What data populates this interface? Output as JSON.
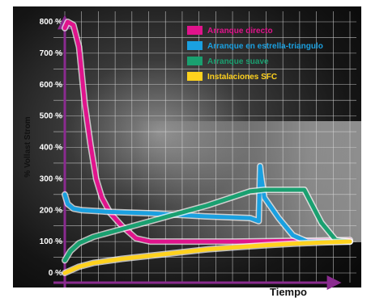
{
  "chart_data": {
    "type": "line",
    "title": "",
    "xlabel": "Tiempo",
    "ylabel": "% Vollast Strom",
    "ylim": [
      0,
      800
    ],
    "xlim": [
      0,
      10
    ],
    "yticks": [
      0,
      100,
      200,
      300,
      400,
      500,
      600,
      700,
      800
    ],
    "ytick_labels": [
      "0 %",
      "100 %",
      "200 %",
      "300 %",
      "400 %",
      "500 %",
      "600 %",
      "700 %",
      "800 %"
    ],
    "grid": true,
    "legend_position": "top-right",
    "series": [
      {
        "name": "Arranque directo",
        "color": "#e0148c",
        "x": [
          0,
          0.1,
          0.3,
          0.5,
          0.7,
          0.9,
          1.1,
          1.3,
          1.6,
          2.0,
          2.5,
          3.0,
          4.0,
          6.0,
          8.0,
          10.0
        ],
        "y": [
          780,
          800,
          790,
          720,
          540,
          410,
          300,
          240,
          190,
          150,
          110,
          100,
          100,
          100,
          102,
          105
        ]
      },
      {
        "name": "Arranque en estrella-triangulo",
        "color": "#1aa0e0",
        "x": [
          0,
          0.1,
          0.3,
          0.6,
          1.5,
          3.0,
          5.0,
          6.5,
          6.8,
          6.85,
          6.9,
          7.0,
          7.5,
          8.0,
          8.5,
          10.0
        ],
        "y": [
          250,
          220,
          205,
          200,
          195,
          190,
          180,
          175,
          165,
          340,
          300,
          240,
          175,
          120,
          100,
          100
        ]
      },
      {
        "name": "Arranque suave",
        "color": "#1aa070",
        "x": [
          0,
          0.2,
          0.5,
          1.0,
          2.0,
          3.0,
          4.0,
          5.0,
          6.0,
          6.5,
          7.0,
          8.0,
          8.4,
          8.6,
          9.0,
          9.5,
          10.0
        ],
        "y": [
          40,
          70,
          95,
          115,
          140,
          165,
          190,
          215,
          245,
          260,
          265,
          265,
          265,
          230,
          160,
          105,
          100
        ]
      },
      {
        "name": "Instalaciones SFC",
        "color": "#ffd21e",
        "x": [
          0,
          0.5,
          1.0,
          2.0,
          3.0,
          4.0,
          5.0,
          6.0,
          7.0,
          8.0,
          9.0,
          10.0
        ],
        "y": [
          0,
          20,
          32,
          45,
          55,
          65,
          75,
          82,
          88,
          93,
          97,
          100
        ]
      }
    ]
  }
}
